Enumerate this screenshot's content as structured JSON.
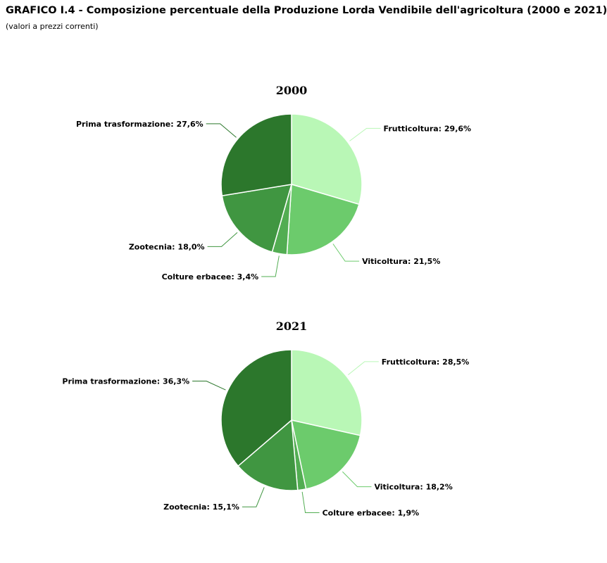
{
  "page": {
    "title": "GRAFICO I.4 - Composizione percentuale della Produzione Lorda Vendibile dell'agricoltura (2000 e 2021)",
    "subtitle": "(valori a prezzi correnti)"
  },
  "colors": {
    "Frutticoltura": "#b9f7b6",
    "Viticoltura": "#6ccb6c",
    "Colture erbacee": "#52ad52",
    "Zootecnia": "#409641",
    "Prima trasformazione": "#2c772c"
  },
  "chart_data": [
    {
      "type": "pie",
      "title": "2000",
      "slices": [
        {
          "label": "Frutticoltura",
          "value": 29.6,
          "text": "Frutticoltura: 29,6%"
        },
        {
          "label": "Viticoltura",
          "value": 21.5,
          "text": "Viticoltura: 21,5%"
        },
        {
          "label": "Colture erbacee",
          "value": 3.4,
          "text": "Colture erbacee: 3,4%"
        },
        {
          "label": "Zootecnia",
          "value": 18.0,
          "text": "Zootecnia: 18,0%"
        },
        {
          "label": "Prima trasformazione",
          "value": 27.6,
          "text": "Prima trasformazione: 27,6%"
        }
      ]
    },
    {
      "type": "pie",
      "title": "2021",
      "slices": [
        {
          "label": "Frutticoltura",
          "value": 28.5,
          "text": "Frutticoltura: 28,5%"
        },
        {
          "label": "Viticoltura",
          "value": 18.2,
          "text": "Viticoltura: 18,2%"
        },
        {
          "label": "Colture erbacee",
          "value": 1.9,
          "text": "Colture erbacee: 1,9%"
        },
        {
          "label": "Zootecnia",
          "value": 15.1,
          "text": "Zootecnia: 15,1%"
        },
        {
          "label": "Prima trasformazione",
          "value": 36.3,
          "text": "Prima trasformazione: 36,3%"
        }
      ]
    }
  ]
}
